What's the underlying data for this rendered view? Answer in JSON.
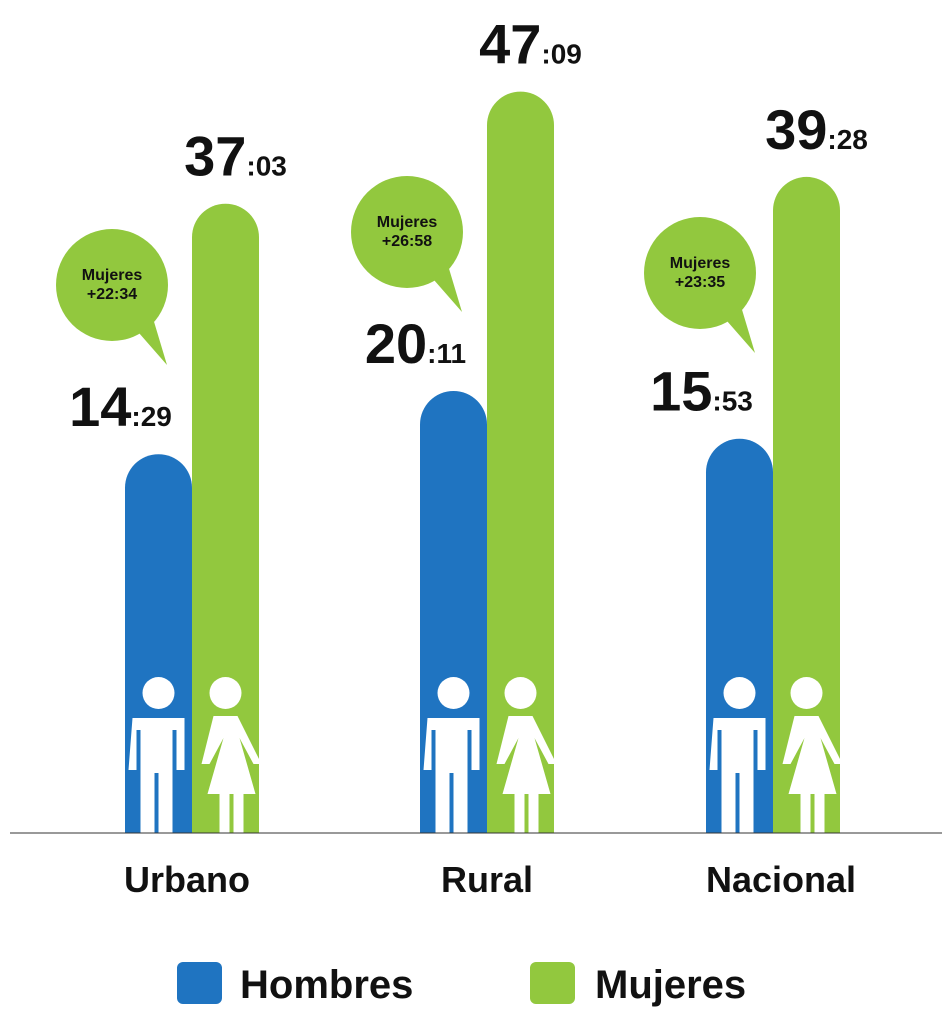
{
  "chart_data": {
    "type": "bar",
    "categories": [
      "Urbano",
      "Rural",
      "Nacional"
    ],
    "series": [
      {
        "name": "Hombres",
        "color": "#1f74c1",
        "values": [
          869,
          1211,
          953
        ],
        "value_labels": [
          "14:29",
          "20:11",
          "15:53"
        ]
      },
      {
        "name": "Mujeres",
        "color": "#92c83e",
        "values": [
          2223,
          2829,
          2368
        ],
        "value_labels": [
          "37:03",
          "47:09",
          "39:28"
        ]
      }
    ],
    "annotations": [
      [
        "Mujeres",
        "+22:34"
      ],
      [
        "Mujeres",
        "+26:58"
      ],
      [
        "Mujeres",
        "+23:35"
      ]
    ]
  }
}
